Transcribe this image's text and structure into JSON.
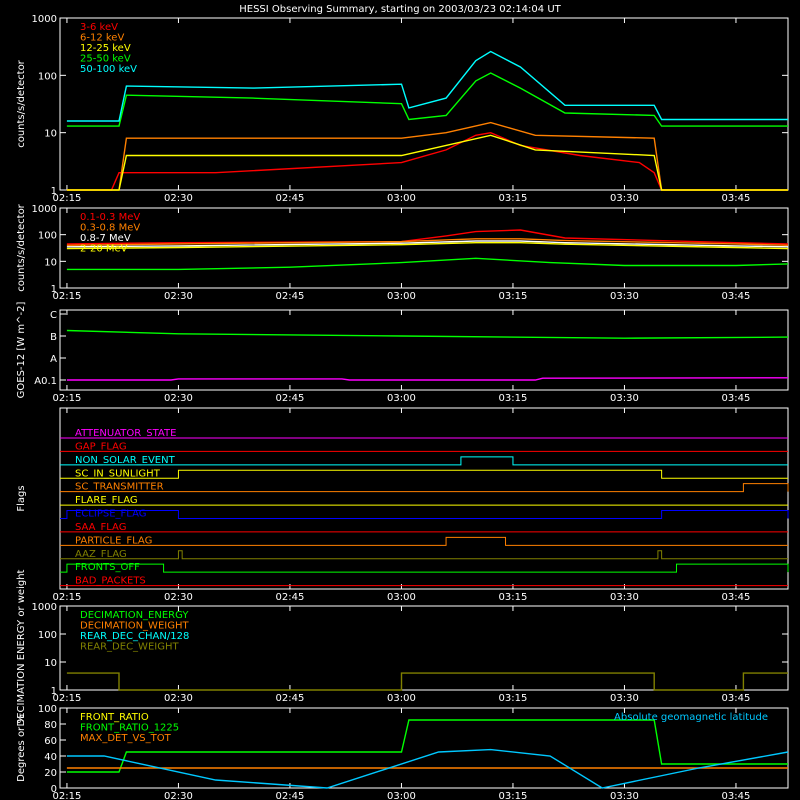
{
  "title": "HESSI Observing Summary, starting on 2003/03/23 02:14:04 UT",
  "time_ticks": [
    "02:15",
    "02:30",
    "02:45",
    "03:00",
    "03:15",
    "03:30",
    "03:45"
  ],
  "colors": {
    "red": "#ff0000",
    "orange": "#ff8000",
    "yellow": "#ffff00",
    "green": "#00ff00",
    "cyan": "#00ffff",
    "white": "#ffffff",
    "magenta": "#ff00ff",
    "blue": "#0000ff",
    "teal_label": "#00c8ff"
  },
  "chart_data": [
    {
      "type": "line",
      "ylabel": "counts/s/detector",
      "yscale": "log",
      "ylim": [
        1,
        1000
      ],
      "yticks": [
        "1",
        "10",
        "100",
        "1000"
      ],
      "xlim": [
        "02:14:04",
        "03:52"
      ],
      "series": [
        {
          "name": "3-6 keV",
          "color": "#ff0000",
          "x": [
            "02:15",
            "02:21",
            "02:22",
            "02:35",
            "03:00",
            "03:06",
            "03:10",
            "03:12",
            "03:16",
            "03:24",
            "03:32",
            "03:34",
            "03:35",
            "03:52"
          ],
          "y": [
            1,
            1,
            2,
            2,
            3,
            5,
            9,
            10,
            6,
            4,
            3,
            2,
            1,
            1
          ]
        },
        {
          "name": "6-12 keV",
          "color": "#ff8000",
          "x": [
            "02:15",
            "02:22",
            "02:23",
            "03:00",
            "03:06",
            "03:12",
            "03:18",
            "03:34",
            "03:35",
            "03:52"
          ],
          "y": [
            1,
            1,
            8,
            8,
            10,
            15,
            9,
            8,
            1,
            1
          ]
        },
        {
          "name": "12-25 keV",
          "color": "#ffff00",
          "x": [
            "02:15",
            "02:22",
            "02:23",
            "03:00",
            "03:06",
            "03:12",
            "03:18",
            "03:34",
            "03:35",
            "03:52"
          ],
          "y": [
            1,
            1,
            4,
            4,
            6,
            9,
            5,
            4,
            1,
            1
          ]
        },
        {
          "name": "25-50 keV",
          "color": "#00ff00",
          "x": [
            "02:15",
            "02:22",
            "02:23",
            "02:40",
            "03:00",
            "03:01",
            "03:06",
            "03:10",
            "03:12",
            "03:16",
            "03:22",
            "03:34",
            "03:35",
            "03:52"
          ],
          "y": [
            13,
            13,
            45,
            40,
            32,
            17,
            20,
            80,
            110,
            60,
            22,
            20,
            13,
            13
          ]
        },
        {
          "name": "50-100 keV",
          "color": "#00ffff",
          "x": [
            "02:15",
            "02:22",
            "02:23",
            "02:40",
            "03:00",
            "03:01",
            "03:06",
            "03:10",
            "03:12",
            "03:16",
            "03:22",
            "03:34",
            "03:35",
            "03:52"
          ],
          "y": [
            16,
            16,
            65,
            60,
            70,
            27,
            40,
            180,
            260,
            140,
            30,
            30,
            17,
            17
          ]
        }
      ]
    },
    {
      "type": "line",
      "ylabel": "counts/s/detector",
      "yscale": "log",
      "ylim": [
        1,
        1000
      ],
      "yticks": [
        "1",
        "10",
        "100",
        "1000"
      ],
      "xlim": [
        "02:14:04",
        "03:52"
      ],
      "series": [
        {
          "name": "0.1-0.3 MeV",
          "color": "#ff0000",
          "x": [
            "02:15",
            "02:30",
            "03:00",
            "03:06",
            "03:10",
            "03:16",
            "03:22",
            "03:45",
            "03:52"
          ],
          "y": [
            45,
            50,
            55,
            90,
            130,
            150,
            75,
            50,
            45
          ]
        },
        {
          "name": "0.3-0.8 MeV",
          "color": "#ff8000",
          "x": [
            "02:15",
            "02:30",
            "03:00",
            "03:10",
            "03:16",
            "03:22",
            "03:45",
            "03:52"
          ],
          "y": [
            40,
            45,
            55,
            70,
            70,
            60,
            45,
            40
          ]
        },
        {
          "name": "0.8-7 MeV",
          "color": "#ffffff",
          "x": [
            "02:15",
            "02:30",
            "03:00",
            "03:10",
            "03:16",
            "03:22",
            "03:45",
            "03:52"
          ],
          "y": [
            35,
            38,
            48,
            58,
            58,
            50,
            38,
            35
          ]
        },
        {
          "name": "2-20 MeV",
          "color": "#ffff00",
          "x": [
            "02:15",
            "02:30",
            "03:00",
            "03:10",
            "03:16",
            "03:22",
            "03:45",
            "03:52"
          ],
          "y": [
            30,
            33,
            42,
            50,
            50,
            44,
            33,
            30
          ]
        },
        {
          "name": "",
          "color": "#00ff00",
          "x": [
            "02:15",
            "02:30",
            "02:45",
            "03:00",
            "03:10",
            "03:20",
            "03:30",
            "03:45",
            "03:52"
          ],
          "y": [
            5,
            5,
            6,
            9,
            13,
            9,
            7,
            7,
            8
          ]
        }
      ]
    },
    {
      "type": "line",
      "ylabel": "GOES-12 [W m^-2]",
      "yscale": "category",
      "yticks": [
        "A0.1",
        "A",
        "B",
        "C"
      ],
      "xlim": [
        "02:14:04",
        "03:52"
      ],
      "series": [
        {
          "name": "",
          "color": "#00ff00",
          "x": [
            "02:15",
            "02:30",
            "03:00",
            "03:30",
            "03:52"
          ],
          "y": [
            2.25,
            2.1,
            2.0,
            1.9,
            1.95
          ]
        },
        {
          "name": "",
          "color": "#ff00ff",
          "x": [
            "02:15",
            "02:29",
            "02:30",
            "02:52",
            "02:53",
            "03:18",
            "03:19",
            "03:52"
          ],
          "y": [
            0.0,
            0.0,
            0.05,
            0.05,
            0.0,
            0.0,
            0.08,
            0.1
          ]
        }
      ]
    },
    {
      "type": "line",
      "ylabel": "Flags",
      "xlim": [
        "02:14:04",
        "03:52"
      ],
      "flags": [
        {
          "name": "ATTENUATOR_STATE",
          "color": "#ff00ff",
          "on": []
        },
        {
          "name": "GAP_FLAG",
          "color": "#ff0000",
          "on": []
        },
        {
          "name": "NON_SOLAR_EVENT",
          "color": "#00ffff",
          "on": [
            [
              "03:08",
              "03:15"
            ]
          ]
        },
        {
          "name": "SC_IN_SUNLIGHT",
          "color": "#ffff00",
          "on": [
            [
              "02:30",
              "03:35"
            ]
          ]
        },
        {
          "name": "SC_TRANSMITTER",
          "color": "#ff8000",
          "on": [
            [
              "03:46",
              "03:52"
            ]
          ]
        },
        {
          "name": "FLARE_FLAG",
          "color": "#ffff00",
          "on": []
        },
        {
          "name": "ECLIPSE_FLAG",
          "color": "#0000ff",
          "on": [
            [
              "02:15",
              "02:30"
            ],
            [
              "03:35",
              "03:52"
            ]
          ]
        },
        {
          "name": "SAA_FLAG",
          "color": "#ff0000",
          "on": []
        },
        {
          "name": "PARTICLE_FLAG",
          "color": "#ff8000",
          "on": [
            [
              "03:06",
              "03:14"
            ]
          ]
        },
        {
          "name": "AAZ_FLAG",
          "color": "#808000",
          "on": [
            [
              "02:30",
              "02:30:30"
            ],
            [
              "03:34:30",
              "03:35"
            ]
          ]
        },
        {
          "name": "FRONTS_OFF",
          "color": "#00ff00",
          "on": [
            [
              "02:15",
              "02:28"
            ],
            [
              "03:37",
              "03:52"
            ]
          ]
        },
        {
          "name": "BAD_PACKETS",
          "color": "#ff0000",
          "on": []
        }
      ]
    },
    {
      "type": "line",
      "ylabel": "DECIMATION ENERGY or weight",
      "yscale": "log",
      "ylim": [
        1,
        1000
      ],
      "yticks": [
        "1",
        "10",
        "100",
        "1000"
      ],
      "xlim": [
        "02:14:04",
        "03:52"
      ],
      "series": [
        {
          "name": "DECIMATION_ENERGY",
          "color": "#00ff00",
          "x": [],
          "y": []
        },
        {
          "name": "DECIMATION_WEIGHT",
          "color": "#ff8000",
          "x": [],
          "y": []
        },
        {
          "name": "REAR_DEC_CHAN/128",
          "color": "#00ffff",
          "x": [],
          "y": []
        },
        {
          "name": "REAR_DEC_WEIGHT",
          "color": "#808000",
          "x": [
            "02:15",
            "02:22",
            "02:22",
            "03:00",
            "03:00",
            "03:34",
            "03:34",
            "03:46",
            "03:46",
            "03:52"
          ],
          "y": [
            4,
            4,
            1,
            1,
            4,
            4,
            1,
            1,
            4,
            4
          ]
        }
      ]
    },
    {
      "type": "line",
      "ylabel": "Degrees or %",
      "ylim": [
        0,
        100
      ],
      "yticks": [
        "0",
        "20",
        "40",
        "60",
        "80",
        "100"
      ],
      "xlim": [
        "02:14:04",
        "03:52"
      ],
      "annotation": "Absolute geomagnetic latitude",
      "series": [
        {
          "name": "FRONT_RATIO",
          "color": "#ffff00",
          "x": [],
          "y": []
        },
        {
          "name": "FRONT_RATIO_1225",
          "color": "#00ff00",
          "x": [
            "02:15",
            "02:22",
            "02:23",
            "03:00",
            "03:01",
            "03:34",
            "03:35",
            "03:52"
          ],
          "y": [
            20,
            20,
            45,
            45,
            85,
            85,
            30,
            30
          ]
        },
        {
          "name": "MAX_DET_VS_TOT",
          "color": "#ff8000",
          "x": [
            "02:15",
            "03:52"
          ],
          "y": [
            25,
            25
          ]
        },
        {
          "name": "",
          "color": "#00c8ff",
          "x": [
            "02:15",
            "02:20",
            "02:35",
            "02:50",
            "03:05",
            "03:12",
            "03:20",
            "03:27",
            "03:40",
            "03:52"
          ],
          "y": [
            40,
            40,
            10,
            0,
            45,
            48,
            40,
            0,
            25,
            45
          ]
        }
      ]
    }
  ]
}
